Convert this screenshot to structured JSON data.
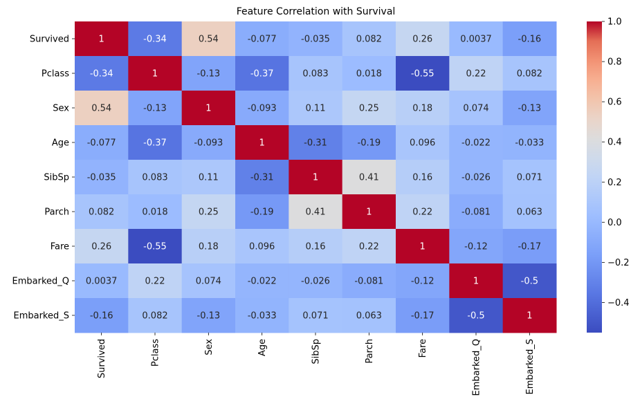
{
  "chart_data": {
    "type": "heatmap",
    "title": "Feature Correlation with Survival",
    "xlabel": "",
    "ylabel": "",
    "labels": [
      "Survived",
      "Pclass",
      "Sex",
      "Age",
      "SibSp",
      "Parch",
      "Fare",
      "Embarked_Q",
      "Embarked_S"
    ],
    "matrix": [
      [
        1,
        -0.34,
        0.54,
        -0.077,
        -0.035,
        0.082,
        0.26,
        0.0037,
        -0.16
      ],
      [
        -0.34,
        1,
        -0.13,
        -0.37,
        0.083,
        0.018,
        -0.55,
        0.22,
        0.082
      ],
      [
        0.54,
        -0.13,
        1,
        -0.093,
        0.11,
        0.25,
        0.18,
        0.074,
        -0.13
      ],
      [
        -0.077,
        -0.37,
        -0.093,
        1,
        -0.31,
        -0.19,
        0.096,
        -0.022,
        -0.033
      ],
      [
        -0.035,
        0.083,
        0.11,
        -0.31,
        1,
        0.41,
        0.16,
        -0.026,
        0.071
      ],
      [
        0.082,
        0.018,
        0.25,
        -0.19,
        0.41,
        1,
        0.22,
        -0.081,
        0.063
      ],
      [
        0.26,
        -0.55,
        0.18,
        0.096,
        0.16,
        0.22,
        1,
        -0.12,
        -0.17
      ],
      [
        0.0037,
        0.22,
        0.074,
        -0.022,
        -0.026,
        -0.081,
        -0.12,
        1,
        -0.5
      ],
      [
        -0.16,
        0.082,
        -0.13,
        -0.033,
        0.071,
        0.063,
        -0.17,
        -0.5,
        1
      ]
    ],
    "annotations": [
      [
        "1",
        "-0.34",
        "0.54",
        "-0.077",
        "-0.035",
        "0.082",
        "0.26",
        "0.0037",
        "-0.16"
      ],
      [
        "-0.34",
        "1",
        "-0.13",
        "-0.37",
        "0.083",
        "0.018",
        "-0.55",
        "0.22",
        "0.082"
      ],
      [
        "0.54",
        "-0.13",
        "1",
        "-0.093",
        "0.11",
        "0.25",
        "0.18",
        "0.074",
        "-0.13"
      ],
      [
        "-0.077",
        "-0.37",
        "-0.093",
        "1",
        "-0.31",
        "-0.19",
        "0.096",
        "-0.022",
        "-0.033"
      ],
      [
        "-0.035",
        "0.083",
        "0.11",
        "-0.31",
        "1",
        "0.41",
        "0.16",
        "-0.026",
        "0.071"
      ],
      [
        "0.082",
        "0.018",
        "0.25",
        "-0.19",
        "0.41",
        "1",
        "0.22",
        "-0.081",
        "0.063"
      ],
      [
        "0.26",
        "-0.55",
        "0.18",
        "0.096",
        "0.16",
        "0.22",
        "1",
        "-0.12",
        "-0.17"
      ],
      [
        "0.0037",
        "0.22",
        "0.074",
        "-0.022",
        "-0.026",
        "-0.081",
        "-0.12",
        "1",
        "-0.5"
      ],
      [
        "-0.16",
        "0.082",
        "-0.13",
        "-0.033",
        "0.071",
        "0.063",
        "-0.17",
        "-0.5",
        "1"
      ]
    ],
    "colormap": "coolwarm",
    "colormap_colors": [
      "#3b4cc0",
      "#dddddd",
      "#b40426"
    ],
    "vmin": -0.55,
    "vmax": 1.0,
    "colorbar": {
      "ticks": [
        1.0,
        0.8,
        0.6,
        0.4,
        0.2,
        0.0,
        -0.2,
        -0.4
      ],
      "tick_labels": [
        "1.0",
        "0.8",
        "0.6",
        "0.4",
        "0.2",
        "0.0",
        "−0.2",
        "−0.4"
      ]
    }
  }
}
